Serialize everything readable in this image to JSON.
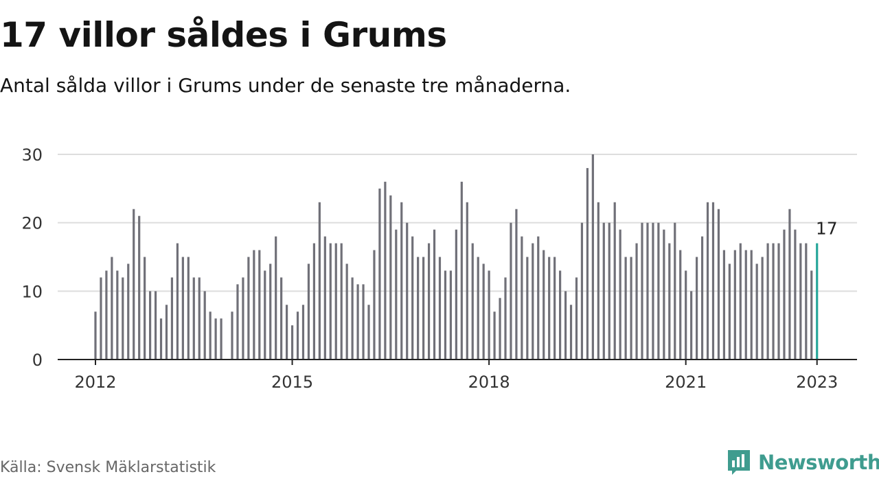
{
  "title": "17 villor såldes i Grums",
  "subtitle": "Antal sålda villor i Grums under de senaste tre månaderna.",
  "source": "Källa: Svensk Mäklarstatistik",
  "brand": {
    "name": "Newsworthy",
    "icon": "newsworthy-logo-icon",
    "color": "#3f9c8f"
  },
  "colors": {
    "bar": "#707078",
    "highlight": "#26a69a",
    "grid": "#dddddd",
    "axis": "#222222"
  },
  "chart_data": {
    "type": "bar",
    "x_start": "2012-01",
    "x_ticks": [
      "2012",
      "2015",
      "2018",
      "2021",
      "2023"
    ],
    "yticks": [
      0,
      10,
      20,
      30
    ],
    "ylim": [
      0,
      30
    ],
    "grid": true,
    "values": [
      7,
      12,
      13,
      15,
      13,
      12,
      14,
      22,
      21,
      15,
      10,
      10,
      6,
      8,
      12,
      17,
      15,
      15,
      12,
      12,
      10,
      7,
      6,
      6,
      null,
      7,
      11,
      12,
      15,
      16,
      16,
      13,
      14,
      18,
      12,
      8,
      5,
      7,
      8,
      14,
      17,
      23,
      18,
      17,
      17,
      17,
      14,
      12,
      11,
      11,
      8,
      16,
      25,
      26,
      24,
      19,
      23,
      20,
      18,
      15,
      15,
      17,
      19,
      15,
      13,
      13,
      19,
      26,
      23,
      17,
      15,
      14,
      13,
      7,
      9,
      12,
      20,
      22,
      18,
      15,
      17,
      18,
      16,
      15,
      15,
      13,
      10,
      8,
      12,
      20,
      28,
      30,
      23,
      20,
      20,
      23,
      19,
      15,
      15,
      17,
      20,
      20,
      20,
      20,
      19,
      17,
      20,
      16,
      13,
      10,
      15,
      18,
      23,
      23,
      22,
      16,
      14,
      16,
      17,
      16,
      16,
      14,
      15,
      17,
      17,
      17,
      19,
      22,
      19,
      17,
      17,
      13,
      17
    ],
    "highlight_label": "17"
  }
}
